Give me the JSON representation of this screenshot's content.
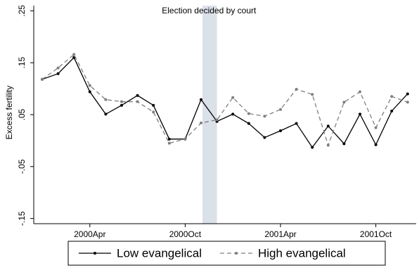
{
  "chart_data": {
    "type": "line",
    "annotation": "Election decided by court",
    "y_label": "Excess fertility",
    "categories": [
      null,
      null,
      null,
      "2000Apr",
      null,
      null,
      null,
      null,
      null,
      "2000Oct",
      null,
      null,
      null,
      null,
      null,
      "2001Apr",
      null,
      null,
      null,
      null,
      null,
      "2001Oct",
      null,
      null
    ],
    "series": [
      {
        "name": "Low evangelical",
        "color": "#000000",
        "dash": false,
        "values": [
          0.118,
          0.129,
          0.16,
          0.094,
          0.051,
          0.068,
          0.087,
          0.068,
          0.003,
          0.003,
          0.079,
          0.037,
          0.051,
          0.033,
          0.006,
          0.019,
          0.033,
          -0.013,
          0.028,
          -0.006,
          0.051,
          -0.008,
          0.057,
          0.09
        ]
      },
      {
        "name": "High evangelical",
        "color": "#7f7f7f",
        "dash": true,
        "values": [
          0.118,
          0.14,
          0.166,
          0.106,
          0.079,
          0.075,
          0.075,
          0.055,
          -0.005,
          0.003,
          0.034,
          0.04,
          0.083,
          0.052,
          0.047,
          0.06,
          0.099,
          0.089,
          -0.009,
          0.074,
          0.094,
          0.025,
          0.085,
          0.074
        ]
      }
    ],
    "ylim": [
      -0.16,
      0.26
    ],
    "yticks": [
      {
        "value": -0.15,
        "label": "-.15"
      },
      {
        "value": -0.05,
        "label": "-.05"
      },
      {
        "value": 0.05,
        "label": ".05"
      },
      {
        "value": 0.15,
        "label": ".15"
      },
      {
        "value": 0.25,
        "label": ".25"
      }
    ],
    "legend": "bottom"
  }
}
